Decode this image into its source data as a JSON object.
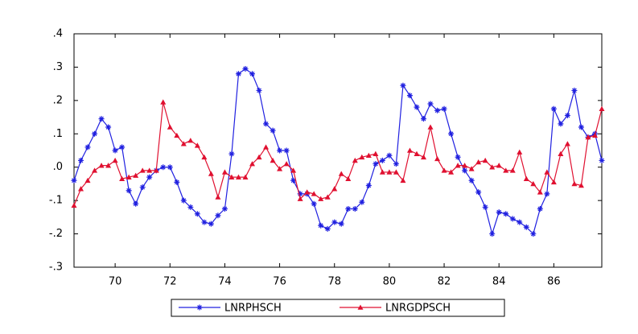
{
  "chart_data": {
    "type": "line",
    "x": [
      68.5,
      68.75,
      69,
      69.25,
      69.5,
      69.75,
      70,
      70.25,
      70.5,
      70.75,
      71,
      71.25,
      71.5,
      71.75,
      72,
      72.25,
      72.5,
      72.75,
      73,
      73.25,
      73.5,
      73.75,
      74,
      74.25,
      74.5,
      74.75,
      75,
      75.25,
      75.5,
      75.75,
      76,
      76.25,
      76.5,
      76.75,
      77,
      77.25,
      77.5,
      77.75,
      78,
      78.25,
      78.5,
      78.75,
      79,
      79.25,
      79.5,
      79.75,
      80,
      80.25,
      80.5,
      80.75,
      81,
      81.25,
      81.5,
      81.75,
      82,
      82.25,
      82.5,
      82.75,
      83,
      83.25,
      83.5,
      83.75,
      84,
      84.25,
      84.5,
      84.75,
      85,
      85.25,
      85.5,
      85.75,
      86,
      86.25,
      86.5,
      86.75,
      87,
      87.25,
      87.5,
      87.75
    ],
    "series": [
      {
        "name": "LNRPHSCH",
        "color": "#2020e0",
        "marker": "star",
        "values": [
          -0.04,
          0.02,
          0.06,
          0.1,
          0.145,
          0.12,
          0.05,
          0.06,
          -0.07,
          -0.11,
          -0.06,
          -0.03,
          -0.01,
          0,
          0,
          -0.045,
          -0.1,
          -0.12,
          -0.14,
          -0.165,
          -0.17,
          -0.145,
          -0.125,
          0.04,
          0.28,
          0.295,
          0.28,
          0.23,
          0.13,
          0.11,
          0.05,
          0.05,
          -0.04,
          -0.08,
          -0.08,
          -0.11,
          -0.175,
          -0.185,
          -0.165,
          -0.17,
          -0.125,
          -0.125,
          -0.105,
          -0.055,
          0.01,
          0.02,
          0.035,
          0.01,
          0.245,
          0.215,
          0.18,
          0.145,
          0.19,
          0.17,
          0.175,
          0.1,
          0.03,
          -0.01,
          -0.04,
          -0.075,
          -0.12,
          -0.2,
          -0.135,
          -0.14,
          -0.155,
          -0.165,
          -0.18,
          -0.2,
          -0.125,
          -0.08,
          0.175,
          0.13,
          0.155,
          0.23,
          0.12,
          0.09,
          0.1,
          0.02
        ]
      },
      {
        "name": "LNRGDPSCH",
        "color": "#e01030",
        "marker": "triangle",
        "values": [
          -0.115,
          -0.065,
          -0.04,
          -0.01,
          0.005,
          0.005,
          0.02,
          -0.035,
          -0.03,
          -0.025,
          -0.01,
          -0.01,
          -0.01,
          0.195,
          0.12,
          0.095,
          0.07,
          0.08,
          0.065,
          0.03,
          -0.02,
          -0.09,
          -0.015,
          -0.03,
          -0.03,
          -0.03,
          0.01,
          0.03,
          0.06,
          0.02,
          -0.005,
          0.01,
          -0.01,
          -0.095,
          -0.075,
          -0.08,
          -0.095,
          -0.09,
          -0.065,
          -0.02,
          -0.035,
          0.02,
          0.03,
          0.035,
          0.04,
          -0.015,
          -0.015,
          -0.015,
          -0.04,
          0.05,
          0.04,
          0.03,
          0.12,
          0.025,
          -0.01,
          -0.015,
          0.005,
          0.005,
          -0.005,
          0.015,
          0.02,
          0,
          0.005,
          -0.01,
          -0.01,
          0.045,
          -0.035,
          -0.05,
          -0.075,
          -0.015,
          -0.045,
          0.04,
          0.07,
          -0.05,
          -0.055,
          0.09,
          0.095,
          0.175
        ]
      }
    ],
    "xlim": [
      68.5,
      87.75
    ],
    "xticks": [
      70,
      72,
      74,
      76,
      78,
      80,
      82,
      84,
      86
    ],
    "ylim": [
      -0.3,
      0.4
    ],
    "yticks": [
      {
        "value": -0.3,
        "label": "-.3"
      },
      {
        "value": -0.2,
        "label": "-.2"
      },
      {
        "value": -0.1,
        "label": "-.1"
      },
      {
        "value": 0,
        "label": ".0"
      },
      {
        "value": 0.1,
        "label": ".1"
      },
      {
        "value": 0.2,
        "label": ".2"
      },
      {
        "value": 0.3,
        "label": ".3"
      },
      {
        "value": 0.4,
        "label": ".4"
      }
    ],
    "grid": false
  }
}
